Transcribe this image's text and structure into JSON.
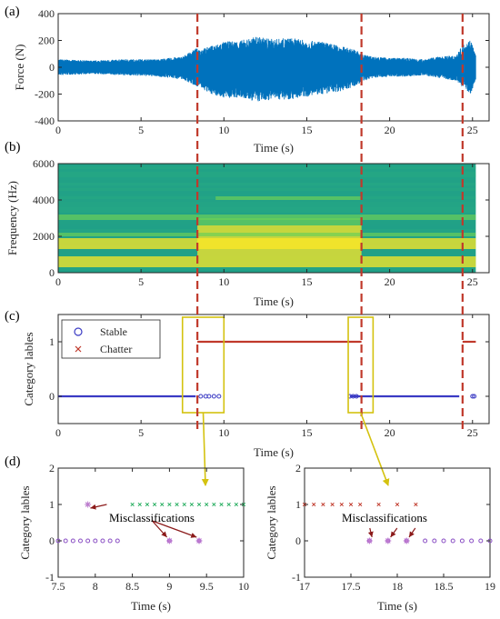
{
  "chart_data": [
    {
      "panel_label": "(a)",
      "type": "line",
      "xlabel": "Time (s)",
      "ylabel": "Force (N)",
      "xlim": [
        0,
        26
      ],
      "ylim": [
        -400,
        400
      ],
      "xticks": [
        "0",
        "5",
        "10",
        "15",
        "20",
        "25"
      ],
      "yticks": [
        "-400",
        "-200",
        "0",
        "200",
        "400"
      ],
      "series": [
        {
          "color": "#0072BD",
          "envelope": {
            "t": [
              0,
              2,
              4,
              6,
              7.5,
              8.3,
              8.6,
              9,
              10,
              11,
              12,
              13,
              14,
              15,
              16,
              17,
              18,
              18.3,
              19,
              20,
              21,
              22,
              23,
              24,
              24.5,
              24.9,
              25.2
            ],
            "upper": [
              60,
              50,
              60,
              60,
              80,
              140,
              140,
              150,
              190,
              200,
              230,
              210,
              220,
              200,
              190,
              160,
              130,
              100,
              80,
              70,
              70,
              60,
              80,
              90,
              180,
              210,
              90
            ],
            "lower": [
              -60,
              -50,
              -60,
              -70,
              -90,
              -140,
              -150,
              -190,
              -230,
              -230,
              -260,
              -240,
              -240,
              -220,
              -200,
              -180,
              -140,
              -110,
              -80,
              -70,
              -70,
              -60,
              -80,
              -100,
              -160,
              -200,
              -90
            ]
          }
        }
      ],
      "vlines": [
        8.4,
        18.3,
        24.4
      ],
      "vline_color": "#C0392B"
    },
    {
      "panel_label": "(b)",
      "type": "heatmap",
      "xlabel": "Time (s)",
      "ylabel": "Frequency (Hz)",
      "xlim": [
        0,
        26
      ],
      "ylim": [
        0,
        6000
      ],
      "xticks": [
        "0",
        "5",
        "10",
        "15",
        "20",
        "25"
      ],
      "yticks": [
        "0",
        "2000",
        "4000",
        "6000"
      ],
      "data_extent_x": [
        0,
        25.2
      ],
      "colors": {
        "low": "#1F9E89",
        "mid": "#6CCE59",
        "high": "#FDE725"
      },
      "bands": [
        {
          "f0": 300,
          "f1": 900,
          "t0": 0,
          "t1": 25.2,
          "level": "high"
        },
        {
          "f0": 1300,
          "f1": 1900,
          "t0": 0,
          "t1": 25.2,
          "level": "high"
        },
        {
          "f0": 900,
          "f1": 2600,
          "t0": 8.4,
          "t1": 18.3,
          "level": "high"
        },
        {
          "f0": 2000,
          "f1": 2200,
          "t0": 0,
          "t1": 25.2,
          "level": "mid"
        },
        {
          "f0": 2900,
          "f1": 3200,
          "t0": 0,
          "t1": 25.2,
          "level": "mid"
        },
        {
          "f0": 2600,
          "f1": 3000,
          "t0": 8.4,
          "t1": 18.3,
          "level": "mid"
        },
        {
          "f0": 4000,
          "f1": 4200,
          "t0": 9.5,
          "t1": 18.3,
          "level": "mid"
        }
      ],
      "vlines": [
        8.4,
        18.3,
        24.4
      ]
    },
    {
      "panel_label": "(c)",
      "type": "scatter",
      "xlabel": "Time (s)",
      "ylabel": "Category lables",
      "xlim": [
        0,
        26
      ],
      "ylim": [
        -0.5,
        1.5
      ],
      "xticks": [
        "0",
        "5",
        "10",
        "15",
        "20",
        "25"
      ],
      "yticks": [
        "0",
        "1"
      ],
      "legend": {
        "placement": "top-left",
        "entries": [
          "Stable",
          "Chatter"
        ]
      },
      "series": [
        {
          "name": "Stable",
          "marker": "circle",
          "color": "#3B3BC4",
          "y": 0,
          "ranges": [
            [
              0,
              8.3
            ],
            [
              17.6,
              24.2
            ]
          ],
          "points": [
            8.6,
            8.9,
            9.1,
            9.4,
            9.7,
            17.6,
            17.8,
            18.0,
            25.0,
            25.1
          ]
        },
        {
          "name": "Chatter",
          "marker": "x",
          "color": "#C0392B",
          "y": 1,
          "ranges": [
            [
              8.4,
              18.3
            ],
            [
              24.4,
              25.2
            ]
          ],
          "points": []
        }
      ],
      "vlines": [
        8.4,
        18.3,
        24.4
      ],
      "zoom_boxes": [
        {
          "x0": 7.5,
          "x1": 10,
          "y0": -0.3,
          "y1": 1.45
        },
        {
          "x0": 17.5,
          "x1": 19,
          "y0": -0.3,
          "y1": 1.45
        }
      ],
      "highlight_color": "#D4C20F"
    },
    {
      "panel_label": "(d)",
      "type": "scatter",
      "xlabel": "Time (s)",
      "ylabel": "Category lables",
      "xlim": [
        7.5,
        10
      ],
      "ylim": [
        -1,
        2
      ],
      "xticks": [
        "7.5",
        "8",
        "8.5",
        "9",
        "9.5",
        "10"
      ],
      "yticks": [
        "-1",
        "0",
        "1",
        "2"
      ],
      "series": [
        {
          "name": "Stable",
          "marker": "circle",
          "color": "#8A4FC4",
          "y": 0,
          "points": [
            7.5,
            7.6,
            7.7,
            7.8,
            7.9,
            8.0,
            8.1,
            8.2,
            8.3,
            9.0,
            9.4
          ]
        },
        {
          "name": "Chatter",
          "marker": "x",
          "color": "#27AE60",
          "y": 1,
          "points": [
            7.9,
            8.5,
            8.6,
            8.7,
            8.8,
            8.9,
            9.0,
            9.1,
            9.2,
            9.3,
            9.4,
            9.5,
            9.6,
            9.7,
            9.8,
            9.9,
            10.0
          ]
        }
      ],
      "annotation": {
        "text": "Misclassifications",
        "x": 8.4,
        "y": 0.65,
        "targets": [
          [
            7.9,
            1
          ],
          [
            9.0,
            0
          ],
          [
            9.4,
            0
          ]
        ]
      }
    },
    {
      "type": "scatter",
      "xlabel": "Time (s)",
      "ylabel": "Category lables",
      "xlim": [
        17,
        19
      ],
      "ylim": [
        -1,
        2
      ],
      "xticks": [
        "17",
        "17.5",
        "18",
        "18.5",
        "19"
      ],
      "yticks": [
        "-1",
        "0",
        "1",
        "2"
      ],
      "series": [
        {
          "name": "Chatter",
          "marker": "x",
          "color": "#C0392B",
          "y": 1,
          "points": [
            17.0,
            17.1,
            17.2,
            17.3,
            17.4,
            17.5,
            17.6,
            17.8,
            18.0,
            18.2
          ]
        },
        {
          "name": "Stable",
          "marker": "circle",
          "color": "#8A4FC4",
          "y": 0,
          "points": [
            17.7,
            17.9,
            18.1,
            18.3,
            18.4,
            18.5,
            18.6,
            18.7,
            18.8,
            18.9,
            19.0
          ]
        }
      ],
      "annotation": {
        "text": "Misclassifications",
        "x": 17.9,
        "y": 0.45,
        "targets": [
          [
            17.7,
            0
          ],
          [
            17.9,
            0
          ],
          [
            18.1,
            0
          ]
        ]
      }
    }
  ]
}
